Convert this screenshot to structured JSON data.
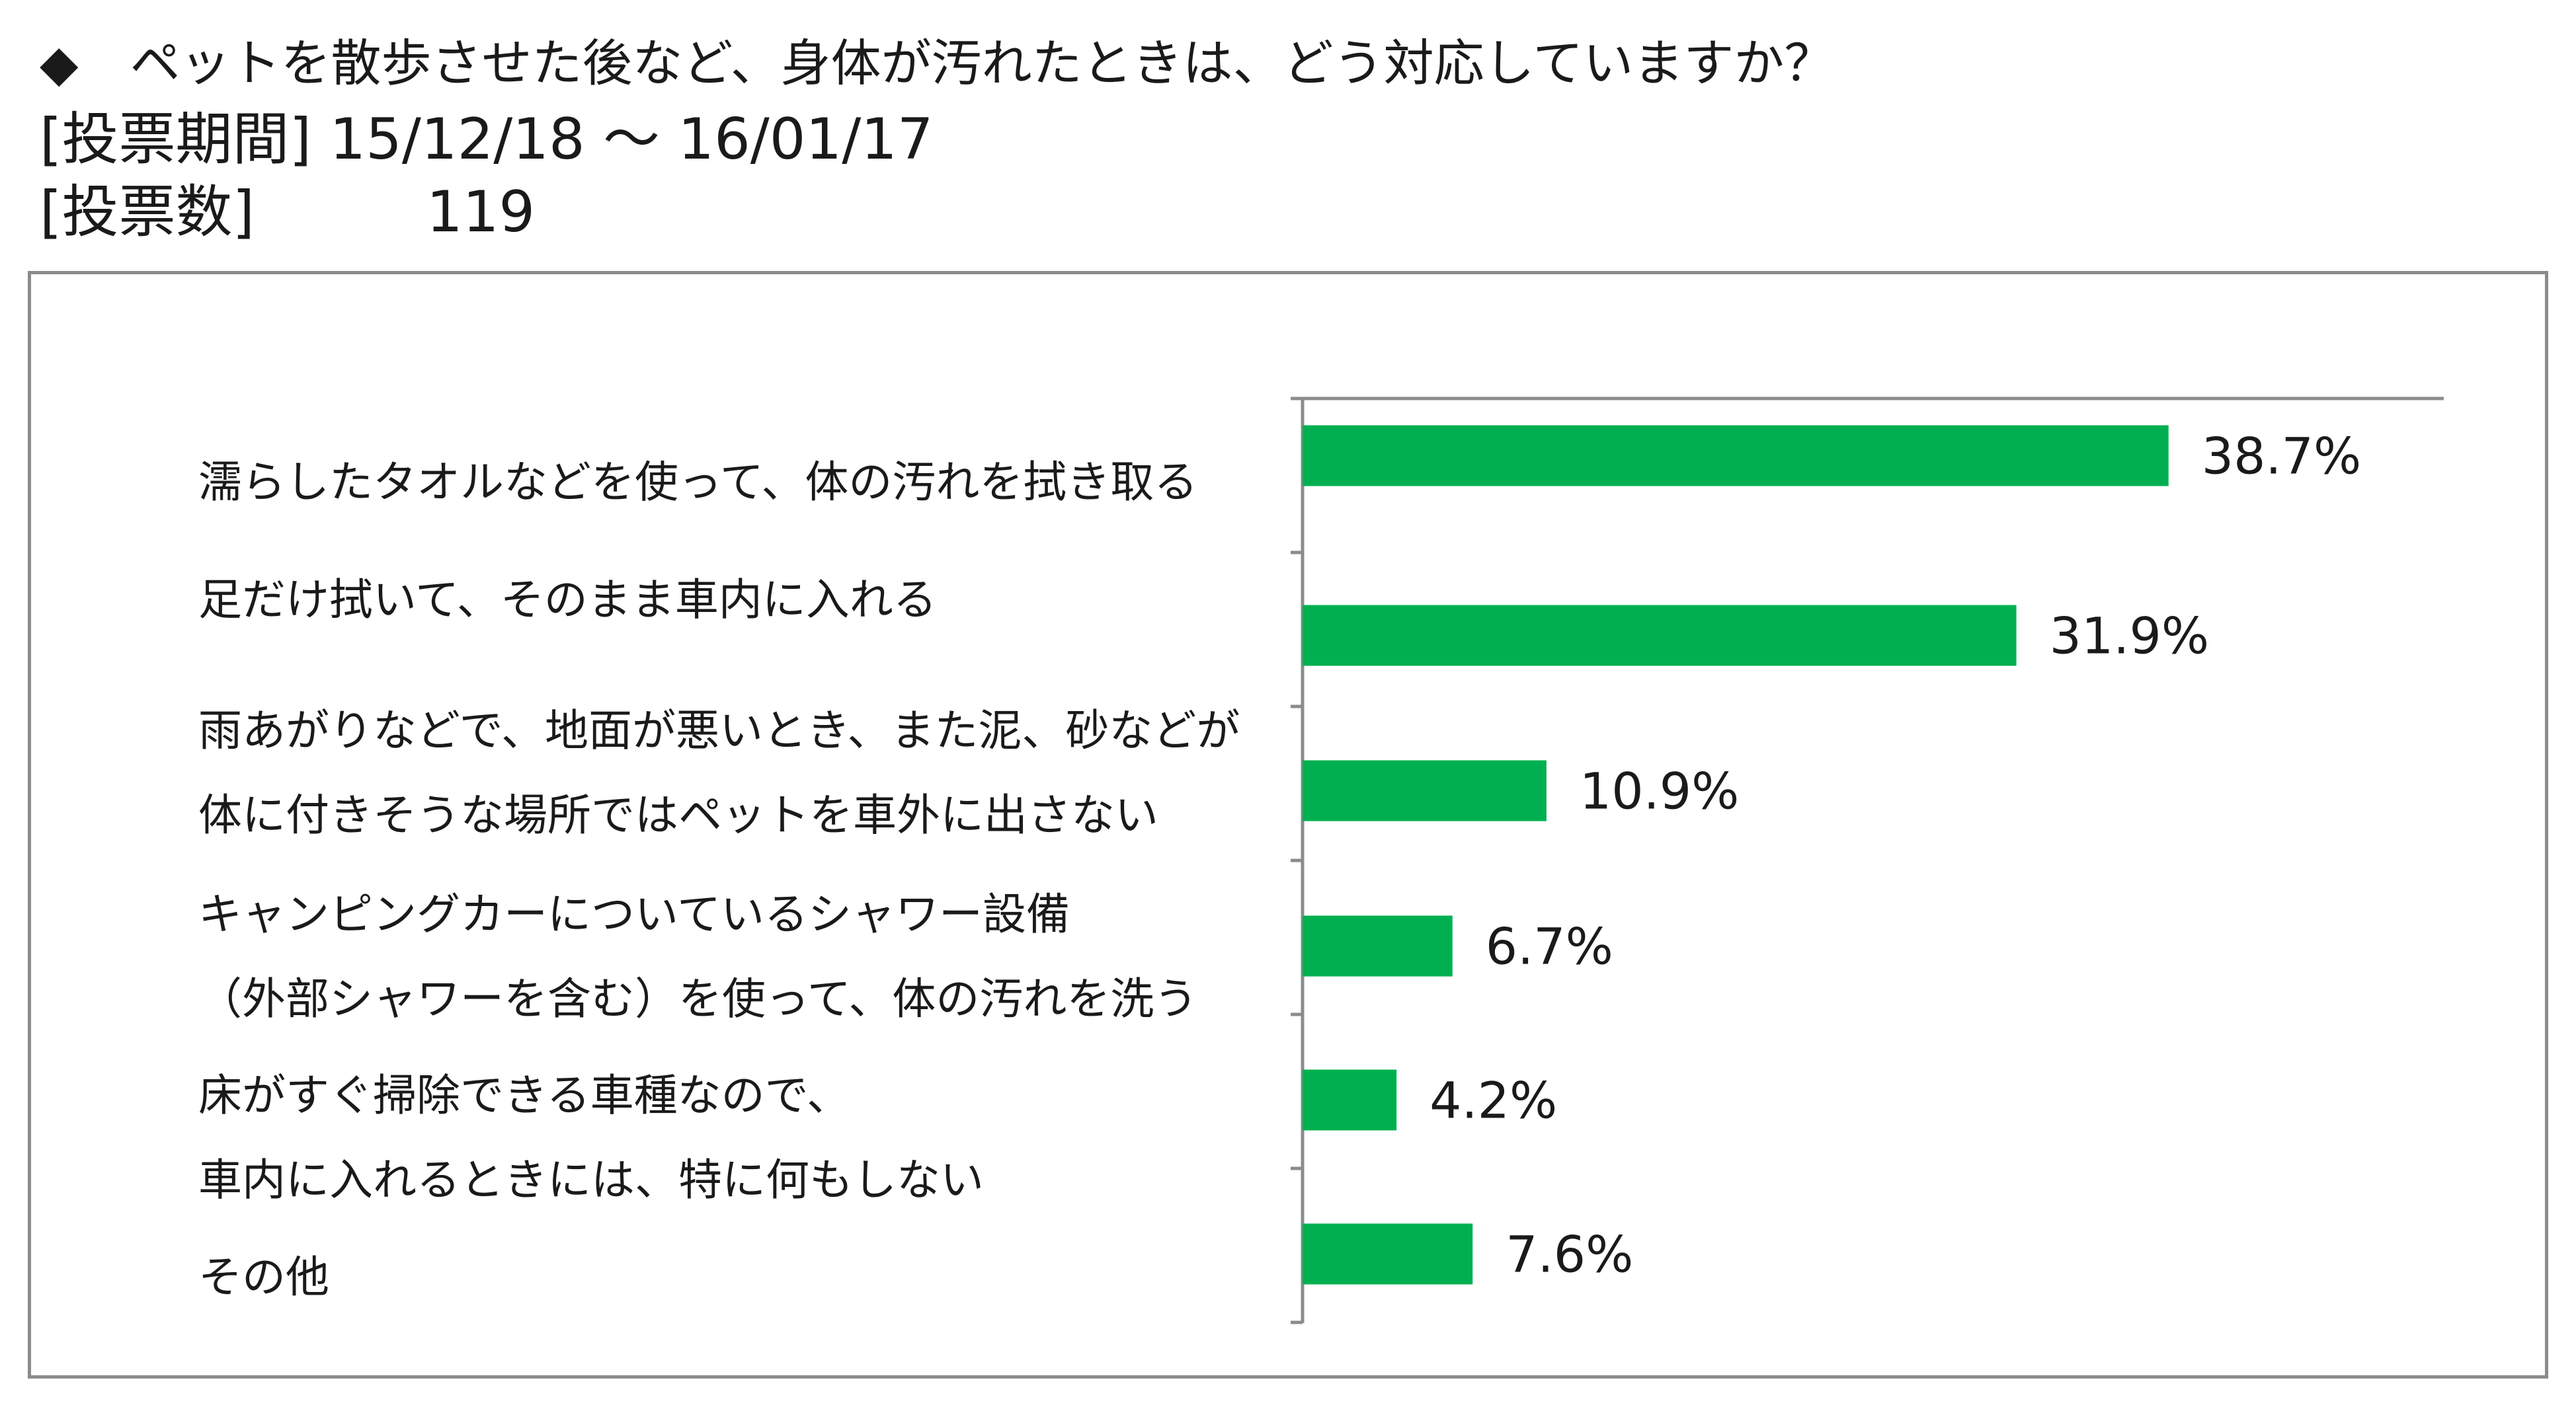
{
  "header": {
    "bullet": "◆",
    "question": "ペットを散歩させた後など、身体が汚れたときは、どう対応していますか？",
    "period_label": "[投票期間]",
    "period_value": "15/12/18 ～ 16/01/17",
    "votes_label": "[投票数]",
    "votes_value": "119"
  },
  "chart_data": {
    "type": "bar",
    "orientation": "horizontal",
    "categories": [
      [
        "濡らしたタオルなどを使って、体の汚れを拭き取る"
      ],
      [
        "足だけ拭いて、そのまま車内に入れる"
      ],
      [
        "雨あがりなどで、地面が悪いとき、また泥、砂などが",
        "体に付きそうな場所ではペットを車外に出さない"
      ],
      [
        "キャンピングカーについているシャワー設備",
        "（外部シャワーを含む）を使って、体の汚れを洗う"
      ],
      [
        "床がすぐ掃除できる車種なので、",
        "車内に入れるときには、特に何もしない"
      ],
      [
        "その他"
      ]
    ],
    "values": [
      38.7,
      31.9,
      10.9,
      6.7,
      4.2,
      7.6
    ],
    "data_labels": [
      "38.7%",
      "31.9%",
      "10.9%",
      "6.7%",
      "4.2%",
      "7.6%"
    ],
    "unit": "%",
    "xlim": [
      0,
      51
    ],
    "bar_color": "#00b050",
    "axis_color": "#8c8c8c",
    "grid": false,
    "legend": "none"
  }
}
